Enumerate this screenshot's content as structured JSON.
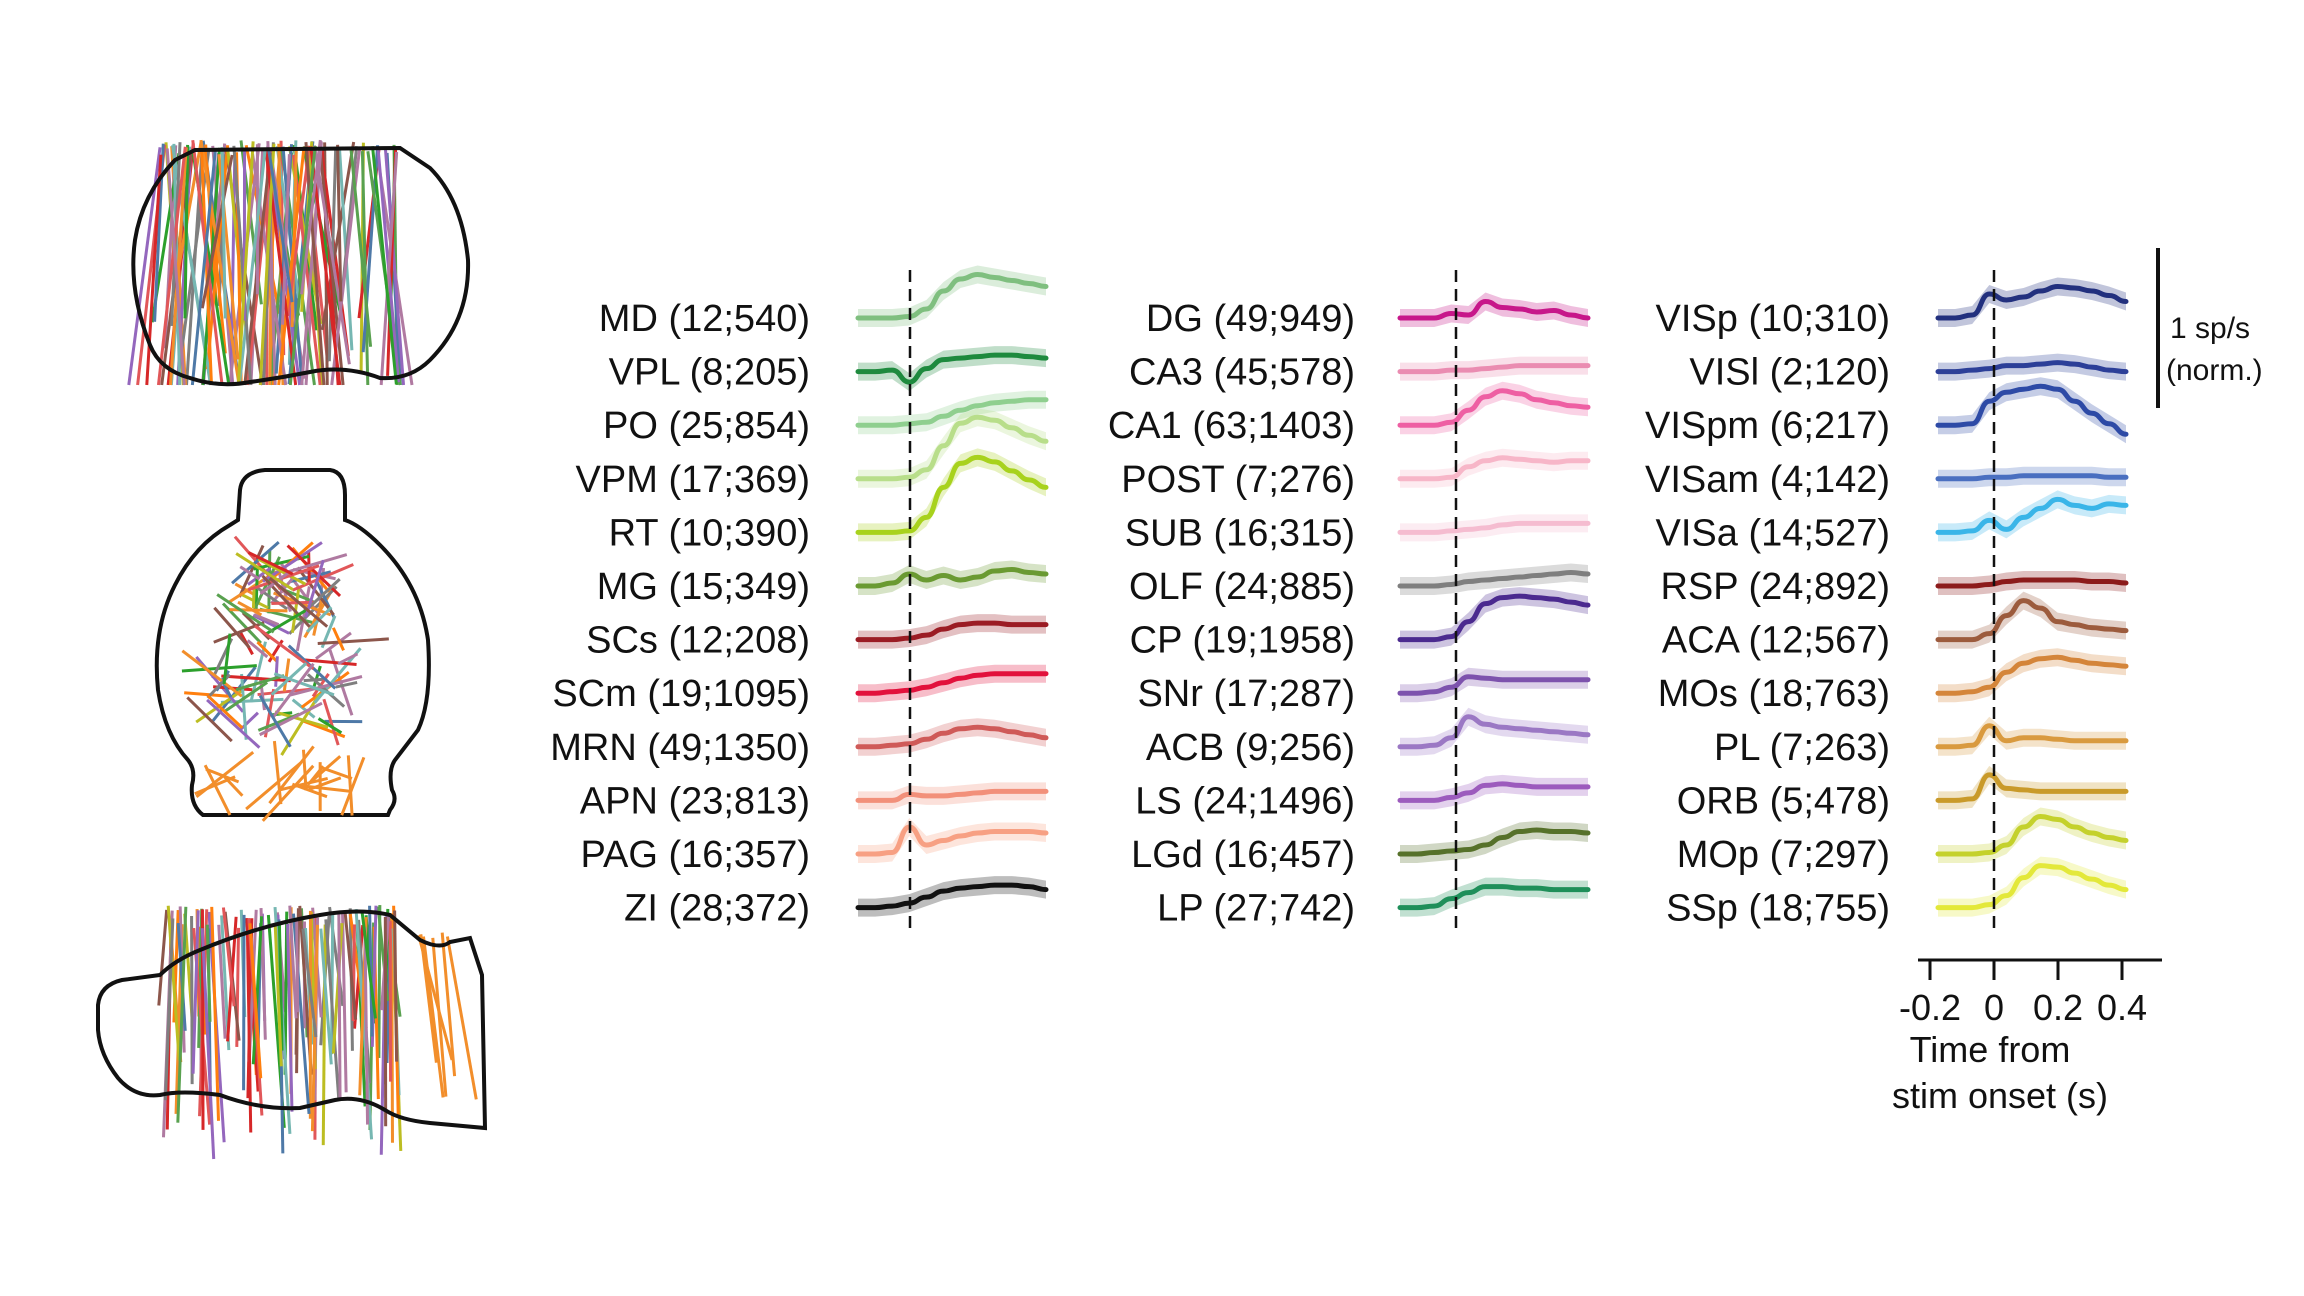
{
  "colors": {
    "probe_palette": [
      "#f28e2b",
      "#59a14f",
      "#e15759",
      "#af7aa1",
      "#8c564b",
      "#4e79a7",
      "#76b7b2",
      "#b07aa1",
      "#7f7f7f",
      "#2ca02c",
      "#ff7f0e",
      "#9467bd",
      "#bcbd22",
      "#d62728"
    ]
  },
  "columns": [
    {
      "regions": [
        {
          "label": "MD (12;540)",
          "color": "#7fbf7f",
          "trace": [
            0.0,
            0.0,
            0.0,
            0.05,
            0.3,
            0.9,
            1.3,
            1.45,
            1.35,
            1.25,
            1.15,
            1.05
          ]
        },
        {
          "label": "VPL (8;205)",
          "color": "#1e8a3e",
          "trace": [
            0.0,
            0.0,
            0.05,
            -0.35,
            0.1,
            0.4,
            0.45,
            0.5,
            0.55,
            0.55,
            0.5,
            0.45
          ]
        },
        {
          "label": "PO (25;854)",
          "color": "#8fcf8f",
          "trace": [
            0.0,
            0.0,
            0.0,
            0.05,
            0.1,
            0.3,
            0.5,
            0.65,
            0.75,
            0.8,
            0.85,
            0.85
          ]
        },
        {
          "label": "VPM (17;369)",
          "color": "#b8de8a",
          "trace": [
            0.0,
            0.0,
            0.0,
            0.05,
            0.3,
            1.1,
            1.85,
            2.05,
            1.95,
            1.7,
            1.45,
            1.25
          ]
        },
        {
          "label": "RT (10;390)",
          "color": "#a8d21d",
          "trace": [
            0.0,
            0.0,
            0.0,
            0.05,
            0.5,
            1.5,
            2.3,
            2.5,
            2.35,
            2.05,
            1.75,
            1.5
          ]
        },
        {
          "label": "MG (15;349)",
          "color": "#6a9a32",
          "trace": [
            0.0,
            0.0,
            0.1,
            0.4,
            0.2,
            0.35,
            0.2,
            0.3,
            0.5,
            0.55,
            0.45,
            0.4
          ]
        },
        {
          "label": "SCs (12;208)",
          "color": "#9b1c24",
          "trace": [
            0.0,
            0.0,
            0.0,
            0.05,
            0.15,
            0.35,
            0.5,
            0.55,
            0.55,
            0.5,
            0.5,
            0.5
          ]
        },
        {
          "label": "SCm (19;1095)",
          "color": "#e2113c",
          "trace": [
            0.0,
            0.0,
            0.05,
            0.1,
            0.2,
            0.35,
            0.5,
            0.6,
            0.65,
            0.65,
            0.65,
            0.65
          ]
        },
        {
          "label": "MRN (49;1350)",
          "color": "#cf5a58",
          "trace": [
            0.0,
            0.0,
            0.05,
            0.1,
            0.25,
            0.45,
            0.6,
            0.65,
            0.6,
            0.5,
            0.4,
            0.3
          ]
        },
        {
          "label": "APN (23;813)",
          "color": "#f2907a",
          "trace": [
            0.0,
            0.0,
            0.0,
            0.2,
            0.15,
            0.15,
            0.2,
            0.25,
            0.3,
            0.3,
            0.3,
            0.3
          ]
        },
        {
          "label": "PAG (16;357)",
          "color": "#f7a083",
          "trace": [
            0.0,
            0.0,
            0.05,
            0.9,
            0.3,
            0.45,
            0.6,
            0.7,
            0.75,
            0.75,
            0.75,
            0.7
          ]
        },
        {
          "label": "ZI (28;372)",
          "color": "#111111",
          "trace": [
            0.0,
            0.0,
            0.05,
            0.15,
            0.35,
            0.55,
            0.65,
            0.7,
            0.75,
            0.75,
            0.7,
            0.6
          ]
        }
      ]
    },
    {
      "regions": [
        {
          "label": "DG (49;949)",
          "color": "#c7178a",
          "trace": [
            0.0,
            0.0,
            0.0,
            0.15,
            0.1,
            0.55,
            0.35,
            0.3,
            0.2,
            0.25,
            0.1,
            0.0
          ]
        },
        {
          "label": "CA3 (45;578)",
          "color": "#ea8cb1",
          "trace": [
            0.0,
            0.0,
            0.0,
            0.05,
            0.05,
            0.1,
            0.15,
            0.2,
            0.2,
            0.2,
            0.2,
            0.2
          ]
        },
        {
          "label": "CA1 (63;1403)",
          "color": "#ee5fa3",
          "trace": [
            0.0,
            0.0,
            0.0,
            0.1,
            0.5,
            0.95,
            1.15,
            1.05,
            0.85,
            0.75,
            0.65,
            0.6
          ]
        },
        {
          "label": "POST (7;276)",
          "color": "#f7b6c8",
          "trace": [
            0.0,
            0.0,
            0.0,
            0.05,
            0.4,
            0.6,
            0.7,
            0.65,
            0.6,
            0.55,
            0.6,
            0.6
          ]
        },
        {
          "label": "SUB (16;315)",
          "color": "#f5bcd0",
          "trace": [
            0.0,
            0.0,
            0.0,
            0.05,
            0.1,
            0.15,
            0.25,
            0.3,
            0.3,
            0.3,
            0.3,
            0.3
          ]
        },
        {
          "label": "OLF (24;885)",
          "color": "#7f7f7f",
          "trace": [
            0.0,
            0.0,
            0.0,
            0.05,
            0.15,
            0.2,
            0.25,
            0.3,
            0.35,
            0.4,
            0.45,
            0.4
          ]
        },
        {
          "label": "CP (19;1958)",
          "color": "#4b2a8f",
          "trace": [
            0.0,
            0.0,
            0.0,
            0.1,
            0.6,
            1.2,
            1.4,
            1.45,
            1.4,
            1.35,
            1.25,
            1.15
          ]
        },
        {
          "label": "SNr (17;287)",
          "color": "#7d52ad",
          "trace": [
            0.0,
            0.0,
            0.05,
            0.2,
            0.55,
            0.5,
            0.45,
            0.45,
            0.45,
            0.45,
            0.45,
            0.45
          ]
        },
        {
          "label": "ACB (9;256)",
          "color": "#9b78c4",
          "trace": [
            0.0,
            0.0,
            0.05,
            0.3,
            1.0,
            0.75,
            0.65,
            0.6,
            0.55,
            0.5,
            0.45,
            0.4
          ]
        },
        {
          "label": "LS (24;1496)",
          "color": "#9c5bbd",
          "trace": [
            0.0,
            0.0,
            0.0,
            0.1,
            0.25,
            0.5,
            0.55,
            0.5,
            0.45,
            0.45,
            0.45,
            0.45
          ]
        },
        {
          "label": "LGd (16;457)",
          "color": "#56712a",
          "trace": [
            0.0,
            0.0,
            0.05,
            0.1,
            0.15,
            0.3,
            0.55,
            0.75,
            0.8,
            0.75,
            0.75,
            0.7
          ]
        },
        {
          "label": "LP (27;742)",
          "color": "#1f8f5a",
          "trace": [
            0.0,
            0.0,
            0.05,
            0.3,
            0.5,
            0.7,
            0.7,
            0.65,
            0.65,
            0.6,
            0.6,
            0.6
          ]
        }
      ]
    },
    {
      "regions": [
        {
          "label": "VISp (10;310)",
          "color": "#22307e",
          "trace": [
            0.0,
            0.0,
            0.1,
            0.8,
            0.6,
            0.7,
            0.9,
            1.05,
            1.0,
            0.9,
            0.75,
            0.55
          ]
        },
        {
          "label": "VISl (2;120)",
          "color": "#2c3f98",
          "trace": [
            0.0,
            0.0,
            0.05,
            0.1,
            0.2,
            0.2,
            0.25,
            0.3,
            0.25,
            0.15,
            0.05,
            0.0
          ]
        },
        {
          "label": "VISpm (6;217)",
          "color": "#2d4aa6",
          "trace": [
            0.0,
            0.0,
            0.05,
            0.8,
            1.1,
            1.2,
            1.3,
            1.2,
            0.8,
            0.4,
            0.05,
            -0.3
          ]
        },
        {
          "label": "VISam (4;142)",
          "color": "#4a6fc0",
          "trace": [
            0.0,
            0.0,
            0.0,
            0.05,
            0.05,
            0.1,
            0.1,
            0.1,
            0.1,
            0.1,
            0.05,
            0.05
          ]
        },
        {
          "label": "VISa (14;527)",
          "color": "#3ab5e8",
          "trace": [
            0.0,
            0.0,
            0.05,
            0.4,
            0.1,
            0.5,
            0.8,
            1.1,
            0.9,
            0.8,
            0.95,
            0.9
          ]
        },
        {
          "label": "RSP (24;892)",
          "color": "#8c1b1b",
          "trace": [
            0.0,
            0.0,
            0.0,
            0.05,
            0.15,
            0.2,
            0.2,
            0.2,
            0.2,
            0.15,
            0.15,
            0.1
          ]
        },
        {
          "label": "ACA (12;567)",
          "color": "#9c5b3d",
          "trace": [
            0.0,
            0.0,
            0.0,
            0.2,
            0.8,
            1.3,
            1.05,
            0.6,
            0.5,
            0.4,
            0.35,
            0.3
          ]
        },
        {
          "label": "MOs (18;763)",
          "color": "#d4853a",
          "trace": [
            0.0,
            0.0,
            0.05,
            0.2,
            0.7,
            1.0,
            1.15,
            1.2,
            1.1,
            1.0,
            0.95,
            0.9
          ]
        },
        {
          "label": "PL (7;263)",
          "color": "#d99a3f",
          "trace": [
            0.0,
            0.0,
            0.05,
            0.7,
            0.2,
            0.3,
            0.3,
            0.25,
            0.2,
            0.2,
            0.2,
            0.2
          ]
        },
        {
          "label": "ORB (5;478)",
          "color": "#c99a2a",
          "trace": [
            0.0,
            0.0,
            0.05,
            0.85,
            0.4,
            0.35,
            0.3,
            0.3,
            0.3,
            0.3,
            0.3,
            0.3
          ]
        },
        {
          "label": "MOp (7;297)",
          "color": "#c4d12c",
          "trace": [
            0.0,
            0.0,
            0.0,
            0.05,
            0.3,
            0.9,
            1.25,
            1.15,
            0.9,
            0.7,
            0.55,
            0.45
          ]
        },
        {
          "label": "SSp (18;755)",
          "color": "#e3e83a",
          "trace": [
            0.0,
            0.0,
            0.0,
            0.1,
            0.4,
            1.0,
            1.4,
            1.35,
            1.15,
            0.95,
            0.75,
            0.6
          ]
        }
      ]
    }
  ],
  "axis": {
    "ticks": [
      "-0.2",
      "0",
      "0.2",
      "0.4"
    ],
    "label_line1": "Time from",
    "label_line2": "stim onset (s)"
  },
  "scale_bar": {
    "line1": "1 sp/s",
    "line2": "(norm.)"
  }
}
